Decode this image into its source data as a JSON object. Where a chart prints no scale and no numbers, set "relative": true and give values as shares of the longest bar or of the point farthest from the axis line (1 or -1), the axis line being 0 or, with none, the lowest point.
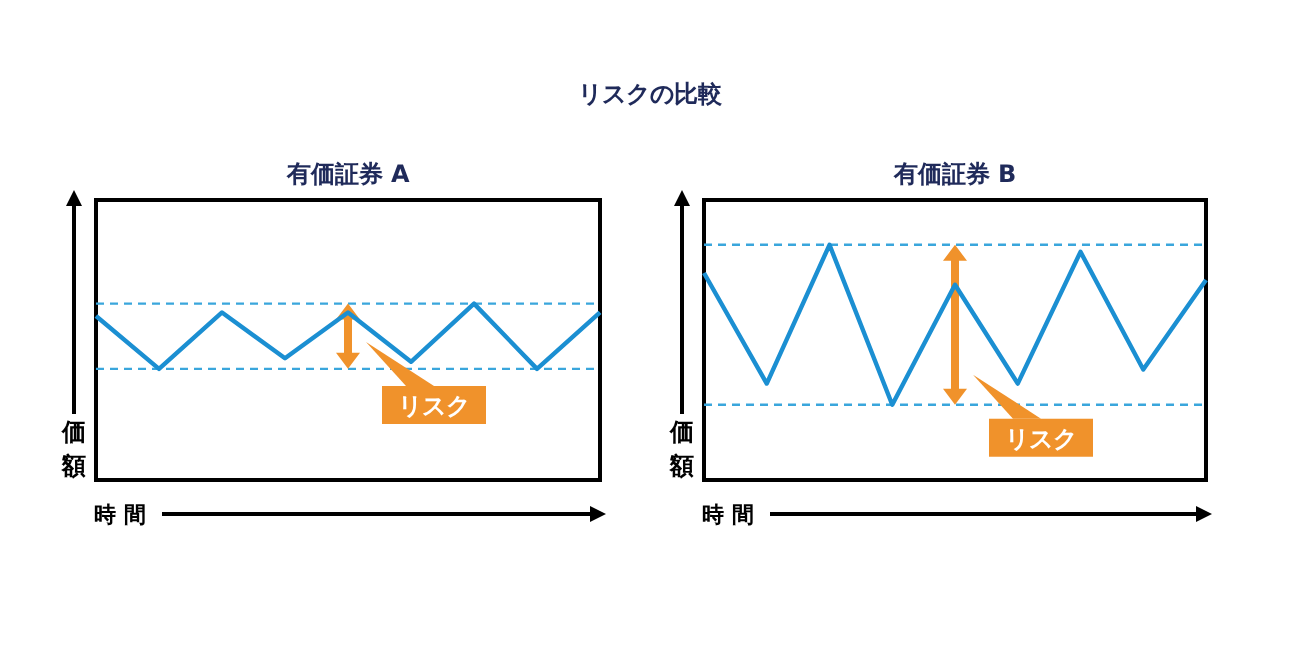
{
  "chart_data": [
    {
      "type": "line",
      "title": "有価証券 A",
      "xlabel": "時間",
      "ylabel": "価額",
      "relative": true,
      "categories": [
        null,
        null,
        null,
        null,
        null,
        null,
        null,
        null,
        null
      ],
      "series": [
        {
          "color": "#1b8fd2",
          "values": [
            0.93,
            0.63,
            0.95,
            0.69,
            0.95,
            0.67,
            1,
            0.63,
            0.95
          ]
        }
      ],
      "ref_lines": [
        {
          "axis": "y",
          "value": 1,
          "color": "#3aa6dc",
          "line_style": "dashed"
        },
        {
          "axis": "y",
          "value": 0.63,
          "color": "#3aa6dc",
          "line_style": "dashed"
        }
      ],
      "annotations": [
        "リスクの比較",
        "リスク"
      ]
    },
    {
      "type": "line",
      "title": "有価証券 B",
      "xlabel": "時間",
      "ylabel": "価額",
      "relative": true,
      "categories": [
        null,
        null,
        null,
        null,
        null,
        null,
        null,
        null,
        null
      ],
      "series": [
        {
          "color": "#1b8fd2",
          "values": [
            0.88,
            0.41,
            1,
            0.32,
            0.83,
            0.41,
            0.97,
            0.47,
            0.85
          ]
        }
      ],
      "ref_lines": [
        {
          "axis": "y",
          "value": 1,
          "color": "#3aa6dc",
          "line_style": "dashed"
        },
        {
          "axis": "y",
          "value": 0.32,
          "color": "#3aa6dc",
          "line_style": "dashed"
        }
      ],
      "annotations": [
        "リスク"
      ]
    }
  ]
}
